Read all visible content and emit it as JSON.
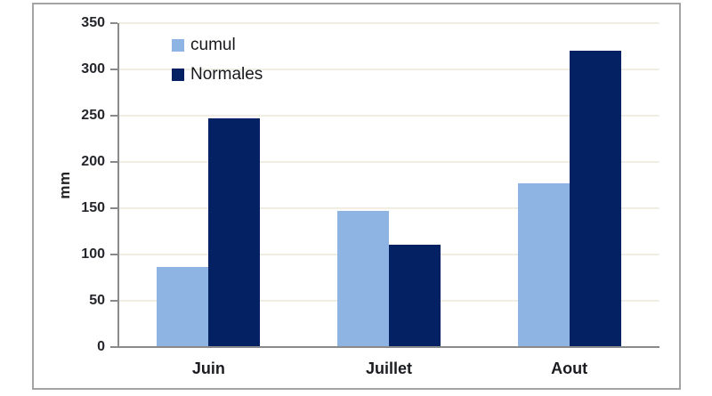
{
  "figure": {
    "background": "#FFFFFF",
    "border_color": "#A3A3A3",
    "axis_color": "#8a8a8a",
    "gridline_color": "#F0EEE2",
    "tick_label_color": "#24262b"
  },
  "chart_data": {
    "type": "bar",
    "title": "",
    "xlabel": "",
    "ylabel": "mm",
    "categories": [
      "Juin",
      "Juillet",
      "Aout"
    ],
    "series": [
      {
        "name": "cumul",
        "color": "#8EB4E3",
        "values": [
          87,
          147,
          177
        ]
      },
      {
        "name": "Normales",
        "color": "#042263",
        "values": [
          247,
          111,
          320
        ]
      }
    ],
    "ylim": [
      0,
      350
    ],
    "ytick_step": 50,
    "yticks": [
      0,
      50,
      100,
      150,
      200,
      250,
      300,
      350
    ],
    "grid": true,
    "legend_position": "top-left-inside"
  }
}
